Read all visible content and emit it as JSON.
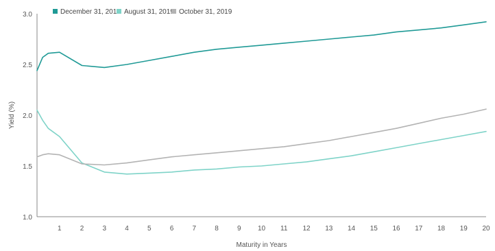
{
  "chart_data": {
    "type": "line",
    "title": "",
    "xlabel": "Maturity in Years",
    "ylabel": "Yield (%)",
    "xlim": [
      0,
      20
    ],
    "ylim": [
      1.0,
      3.0
    ],
    "x_ticks": [
      1,
      2,
      3,
      4,
      5,
      6,
      7,
      8,
      9,
      10,
      11,
      12,
      13,
      14,
      15,
      16,
      17,
      18,
      19,
      20
    ],
    "y_ticks": [
      "1.0",
      "1.5",
      "2.0",
      "2.5",
      "3.0"
    ],
    "grid": false,
    "legend_position": "top-left",
    "series": [
      {
        "name": "December 31, 2018",
        "color": "#1f9a96",
        "points": [
          [
            0,
            2.44
          ],
          [
            0.25,
            2.57
          ],
          [
            0.5,
            2.61
          ],
          [
            1,
            2.62
          ],
          [
            2,
            2.49
          ],
          [
            3,
            2.47
          ],
          [
            4,
            2.5
          ],
          [
            5,
            2.54
          ],
          [
            6,
            2.58
          ],
          [
            7,
            2.62
          ],
          [
            8,
            2.65
          ],
          [
            9,
            2.67
          ],
          [
            10,
            2.69
          ],
          [
            11,
            2.71
          ],
          [
            12,
            2.73
          ],
          [
            13,
            2.75
          ],
          [
            14,
            2.77
          ],
          [
            15,
            2.79
          ],
          [
            16,
            2.82
          ],
          [
            17,
            2.84
          ],
          [
            18,
            2.86
          ],
          [
            19,
            2.89
          ],
          [
            20,
            2.92
          ]
        ]
      },
      {
        "name": "August 31, 2019",
        "color": "#7ed3c8",
        "points": [
          [
            0,
            2.05
          ],
          [
            0.25,
            1.95
          ],
          [
            0.5,
            1.87
          ],
          [
            1,
            1.79
          ],
          [
            2,
            1.53
          ],
          [
            3,
            1.44
          ],
          [
            4,
            1.42
          ],
          [
            5,
            1.43
          ],
          [
            6,
            1.44
          ],
          [
            7,
            1.46
          ],
          [
            8,
            1.47
          ],
          [
            9,
            1.49
          ],
          [
            10,
            1.5
          ],
          [
            11,
            1.52
          ],
          [
            12,
            1.54
          ],
          [
            13,
            1.57
          ],
          [
            14,
            1.6
          ],
          [
            15,
            1.64
          ],
          [
            16,
            1.68
          ],
          [
            17,
            1.72
          ],
          [
            18,
            1.76
          ],
          [
            19,
            1.8
          ],
          [
            20,
            1.84
          ]
        ]
      },
      {
        "name": "October 31, 2019",
        "color": "#b3b3b3",
        "points": [
          [
            0,
            1.59
          ],
          [
            0.25,
            1.61
          ],
          [
            0.5,
            1.62
          ],
          [
            1,
            1.61
          ],
          [
            2,
            1.52
          ],
          [
            3,
            1.51
          ],
          [
            4,
            1.53
          ],
          [
            5,
            1.56
          ],
          [
            6,
            1.59
          ],
          [
            7,
            1.61
          ],
          [
            8,
            1.63
          ],
          [
            9,
            1.65
          ],
          [
            10,
            1.67
          ],
          [
            11,
            1.69
          ],
          [
            12,
            1.72
          ],
          [
            13,
            1.75
          ],
          [
            14,
            1.79
          ],
          [
            15,
            1.83
          ],
          [
            16,
            1.87
          ],
          [
            17,
            1.92
          ],
          [
            18,
            1.97
          ],
          [
            19,
            2.01
          ],
          [
            20,
            2.06
          ]
        ]
      }
    ]
  }
}
